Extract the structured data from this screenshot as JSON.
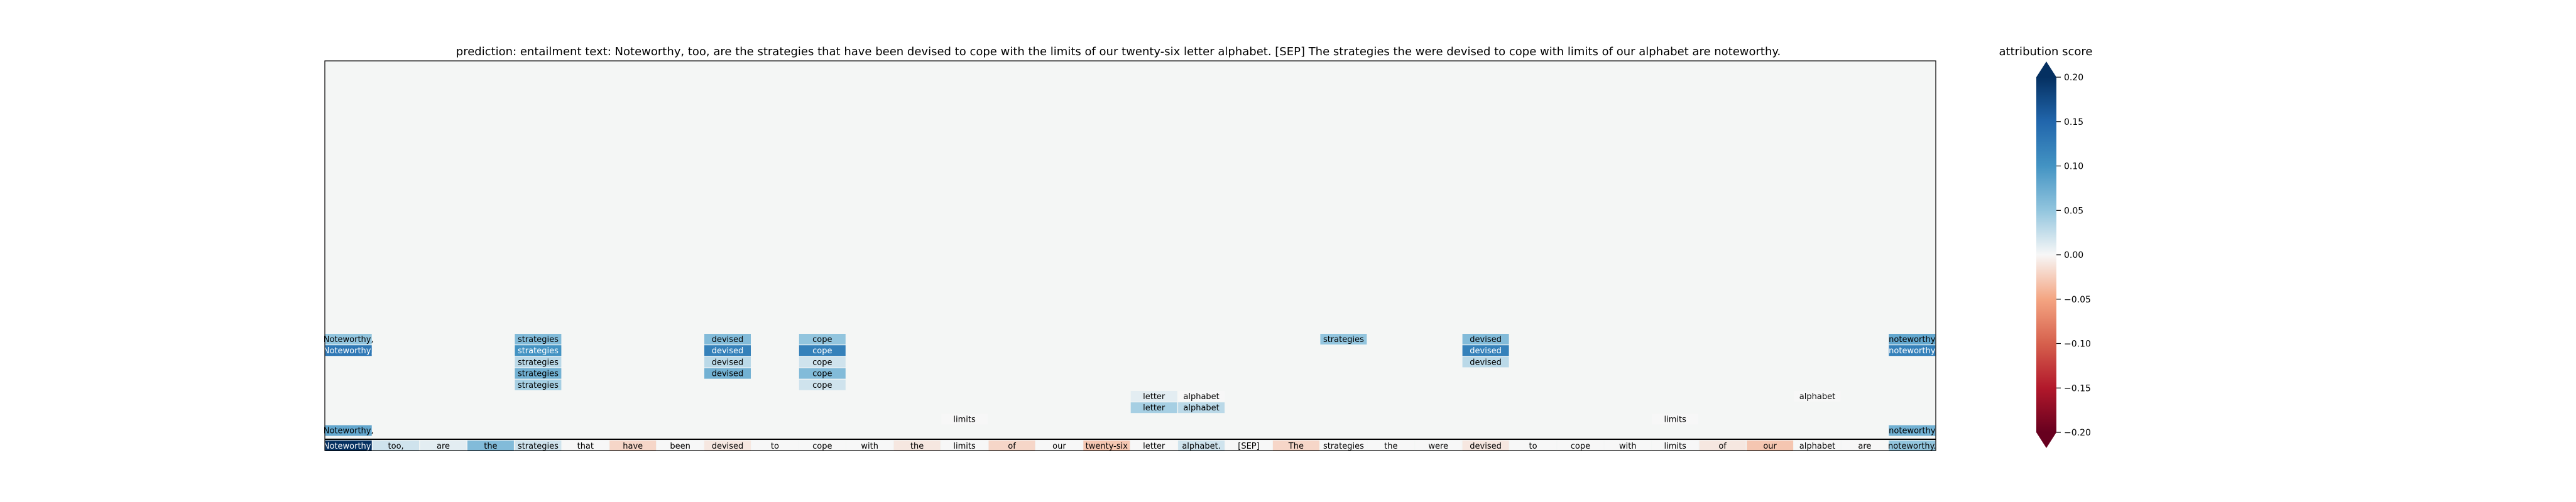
{
  "chart_data": {
    "type": "heatmap",
    "title": "prediction:  entailment     text:  Noteworthy, too, are the strategies that have been devised to cope with the limits of our twenty-six letter alphabet. [SEP] The strategies the were devised to cope with limits of our alphabet are noteworthy.",
    "background_color": "#f4f6f5",
    "baseline_tokens": [
      "Noteworthy,",
      "too,",
      "are",
      "the",
      "strategies",
      "that",
      "have",
      "been",
      "devised",
      "to",
      "cope",
      "with",
      "the",
      "limits",
      "of",
      "our",
      "twenty-six",
      "letter",
      "alphabet.",
      "[SEP]",
      "The",
      "strategies",
      "the",
      "were",
      "devised",
      "to",
      "cope",
      "with",
      "limits",
      "of",
      "our",
      "alphabet",
      "are",
      "noteworthy."
    ],
    "baseline_scores": [
      0.2,
      0.02,
      0.01,
      0.06,
      0.02,
      0.0,
      -0.02,
      0.0,
      -0.01,
      0.0,
      0.0,
      0.0,
      -0.01,
      0.0,
      -0.02,
      0.0,
      -0.03,
      0.0,
      0.02,
      0.0,
      -0.02,
      0.0,
      0.0,
      0.0,
      -0.01,
      0.0,
      0.0,
      0.0,
      0.0,
      -0.01,
      -0.03,
      0.0,
      0.0,
      0.05
    ],
    "cells": [
      {
        "col": 0,
        "row": 0,
        "text": "Noteworthy,",
        "score": 0.05
      },
      {
        "col": 0,
        "row": 1,
        "text": "Noteworthy,",
        "score": 0.13
      },
      {
        "col": 0,
        "row": 8,
        "text": "Noteworthy,",
        "score": 0.08
      },
      {
        "col": 4,
        "row": 0,
        "text": "strategies",
        "score": 0.06
      },
      {
        "col": 4,
        "row": 1,
        "text": "strategies",
        "score": 0.1
      },
      {
        "col": 4,
        "row": 2,
        "text": "strategies",
        "score": 0.03
      },
      {
        "col": 4,
        "row": 3,
        "text": "strategies",
        "score": 0.07
      },
      {
        "col": 4,
        "row": 4,
        "text": "strategies",
        "score": 0.04
      },
      {
        "col": 8,
        "row": 0,
        "text": "devised",
        "score": 0.06
      },
      {
        "col": 8,
        "row": 1,
        "text": "devised",
        "score": 0.12
      },
      {
        "col": 8,
        "row": 2,
        "text": "devised",
        "score": 0.03
      },
      {
        "col": 8,
        "row": 3,
        "text": "devised",
        "score": 0.07
      },
      {
        "col": 10,
        "row": 0,
        "text": "cope",
        "score": 0.05
      },
      {
        "col": 10,
        "row": 1,
        "text": "cope",
        "score": 0.12
      },
      {
        "col": 10,
        "row": 2,
        "text": "cope",
        "score": 0.02
      },
      {
        "col": 10,
        "row": 3,
        "text": "cope",
        "score": 0.06
      },
      {
        "col": 10,
        "row": 4,
        "text": "cope",
        "score": 0.02
      },
      {
        "col": 13,
        "row": 7,
        "text": "limits",
        "score": 0.0
      },
      {
        "col": 17,
        "row": 5,
        "text": "letter",
        "score": 0.01
      },
      {
        "col": 17,
        "row": 6,
        "text": "letter",
        "score": 0.04
      },
      {
        "col": 18,
        "row": 5,
        "text": "alphabet",
        "score": 0.0
      },
      {
        "col": 18,
        "row": 6,
        "text": "alphabet",
        "score": 0.03
      },
      {
        "col": 21,
        "row": 0,
        "text": "strategies",
        "score": 0.05
      },
      {
        "col": 24,
        "row": 0,
        "text": "devised",
        "score": 0.06
      },
      {
        "col": 24,
        "row": 1,
        "text": "devised",
        "score": 0.12
      },
      {
        "col": 24,
        "row": 2,
        "text": "devised",
        "score": 0.03
      },
      {
        "col": 28,
        "row": 7,
        "text": "limits",
        "score": 0.0
      },
      {
        "col": 31,
        "row": 5,
        "text": "alphabet",
        "score": 0.0
      },
      {
        "col": 33,
        "row": 0,
        "text": "noteworthy",
        "score": 0.08
      },
      {
        "col": 33,
        "row": 1,
        "text": "noteworthy",
        "score": 0.12
      },
      {
        "col": 33,
        "row": 8,
        "text": "noteworthy",
        "score": 0.07
      }
    ],
    "colorbar": {
      "label": "attribution score",
      "range": [
        -0.2,
        0.2
      ],
      "ticks": [
        0.2,
        0.15,
        0.1,
        0.05,
        0.0,
        -0.05,
        -0.1,
        -0.15,
        -0.2
      ],
      "tick_labels": [
        "0.20",
        "0.15",
        "0.10",
        "0.05",
        "0.00",
        "−0.05",
        "−0.10",
        "−0.15",
        "−0.20"
      ],
      "colormap": "RdBu"
    }
  }
}
